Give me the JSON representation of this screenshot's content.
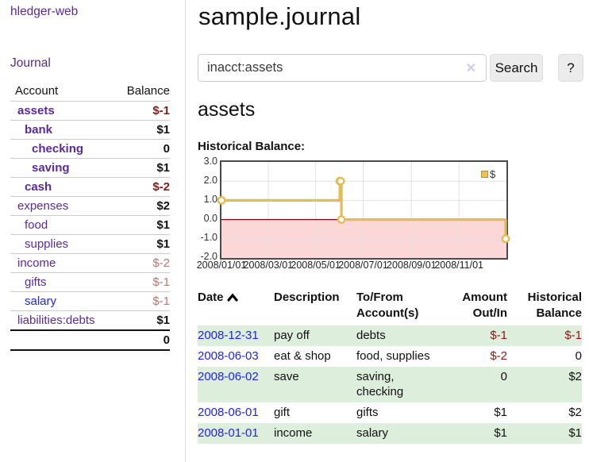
{
  "app": {
    "brand": "hledger-web"
  },
  "sidebar": {
    "nav_journal": "Journal",
    "accounts": {
      "headers": {
        "account": "Account",
        "balance": "Balance"
      },
      "rows": [
        {
          "name": "assets",
          "balance": "$-1"
        },
        {
          "name": "bank",
          "balance": "$1"
        },
        {
          "name": "checking",
          "balance": "0"
        },
        {
          "name": "saving",
          "balance": "$1"
        },
        {
          "name": "cash",
          "balance": "$-2"
        },
        {
          "name": "expenses",
          "balance": "$2"
        },
        {
          "name": "food",
          "balance": "$1"
        },
        {
          "name": "supplies",
          "balance": "$1"
        },
        {
          "name": "income",
          "balance": "$-2"
        },
        {
          "name": "gifts",
          "balance": "$-1"
        },
        {
          "name": "salary",
          "balance": "$-1"
        },
        {
          "name": "liabilities:debts",
          "balance": "$1"
        }
      ],
      "total": "0"
    }
  },
  "main": {
    "title": "sample.journal",
    "search": {
      "value": "inacct:assets",
      "clear_icon": "✕",
      "search_button": "Search",
      "help_button": "?"
    },
    "account_heading": "assets",
    "chart_title": "Historical Balance:"
  },
  "chart_data": {
    "type": "line",
    "style": "step-after",
    "title": "Historical Balance:",
    "legend": [
      "$"
    ],
    "legend_position": "top-right",
    "grid": true,
    "ylim": [
      -2,
      3
    ],
    "y_tick_labels": [
      "3.0",
      "2.0",
      "1.0",
      "0.0",
      "-1.0",
      "-2.0"
    ],
    "x_range": [
      "2008-01-01",
      "2009-01-01"
    ],
    "x_ticks": [
      "2008-01-01",
      "2008-03-01",
      "2008-05-01",
      "2008-07-01",
      "2008-09-01",
      "2008-11-01"
    ],
    "x_tick_labels": [
      "2008/01/01",
      "2008/03/01",
      "2008/05/01",
      "2008/07/01",
      "2008/09/01",
      "2008/11/01"
    ],
    "series": [
      {
        "name": "$",
        "points": [
          {
            "date": "2008-01-01",
            "balance": 1
          },
          {
            "date": "2008-06-01",
            "balance": 2
          },
          {
            "date": "2008-06-02",
            "balance": 2
          },
          {
            "date": "2008-06-03",
            "balance": 0
          },
          {
            "date": "2008-12-31",
            "balance": -1
          }
        ]
      }
    ],
    "colors": {
      "line": "#e3bc57",
      "marker_fill": "#ffffff",
      "negative_region": "#fbd7d7",
      "zero_line": "#8b0000",
      "grid": "#e2e2e2",
      "border": "#4a4a4a"
    }
  },
  "register": {
    "headers": {
      "date": "Date",
      "description": "Description",
      "tofrom_line1": "To/From",
      "tofrom_line2": "Account(s)",
      "amount_line1": "Amount",
      "amount_line2": "Out/In",
      "balance_line1": "Historical",
      "balance_line2": "Balance"
    },
    "rows": [
      {
        "date": "2008-12-31",
        "description": "pay off",
        "accounts": "debts",
        "amount": "$-1",
        "balance": "$-1"
      },
      {
        "date": "2008-06-03",
        "description": "eat & shop",
        "accounts": "food, supplies",
        "amount": "$-2",
        "balance": "0"
      },
      {
        "date": "2008-06-02",
        "description": "save",
        "accounts": "saving, checking",
        "amount": "0",
        "balance": "$2"
      },
      {
        "date": "2008-06-01",
        "description": "gift",
        "accounts": "gifts",
        "amount": "$1",
        "balance": "$2"
      },
      {
        "date": "2008-01-01",
        "description": "income",
        "accounts": "salary",
        "amount": "$1",
        "balance": "$1"
      }
    ]
  },
  "colors": {
    "link_purple": "#5b2a9b",
    "link_blue": "#2222ee",
    "negative": "#8b1717",
    "negative_dim": "#c17470",
    "row_green": "#ddeedd"
  }
}
